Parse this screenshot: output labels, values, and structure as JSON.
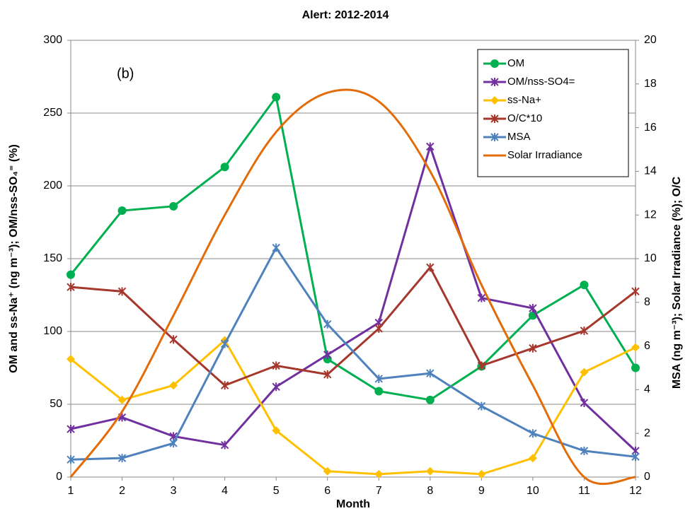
{
  "chart_data": {
    "type": "line",
    "title": "Alert: 2012-2014",
    "annotation": "(b)",
    "x_label": "Month",
    "y_label": "OM and ss-Na⁺ (ng m⁻³); OM/nss-SO₄⁼ (%)",
    "y2_label": "MSA (ng m⁻³); Solar Irradiance (%); O/C",
    "x": [
      1,
      2,
      3,
      4,
      5,
      6,
      7,
      8,
      9,
      10,
      11,
      12
    ],
    "xlim": [
      1,
      12
    ],
    "xticks": [
      1,
      2,
      3,
      4,
      5,
      6,
      7,
      8,
      9,
      10,
      11,
      12
    ],
    "ylim": [
      0,
      300
    ],
    "yticks": [
      0,
      50,
      100,
      150,
      200,
      250,
      300
    ],
    "y2lim": [
      0,
      20
    ],
    "y2ticks": [
      0,
      2,
      4,
      6,
      8,
      10,
      12,
      14,
      16,
      18,
      20
    ],
    "grid": true,
    "legend": "top-right",
    "series": [
      {
        "name": "OM",
        "color": "#00b050",
        "marker": "circle",
        "values": [
          139,
          183,
          186,
          213,
          261,
          81,
          59,
          53,
          76,
          111,
          132,
          75
        ]
      },
      {
        "name": "OM/nss-SO4=",
        "color": "#7030a0",
        "marker": "star",
        "values": [
          33,
          41,
          28,
          22,
          62,
          84,
          106,
          227,
          123,
          116,
          51,
          18
        ]
      },
      {
        "name": "ss-Na+",
        "color": "#ffc000",
        "marker": "diamond",
        "values": [
          81,
          53,
          63,
          94,
          32,
          4,
          2,
          4,
          2,
          13,
          72,
          89
        ]
      },
      {
        "name": "O/C*10",
        "color": "#a5372c",
        "marker": "star",
        "axis": "y2",
        "values": [
          8.7,
          8.5,
          6.3,
          4.2,
          5.1,
          4.7,
          6.8,
          9.6,
          5.1,
          5.9,
          6.7,
          8.5
        ]
      },
      {
        "name": "MSA",
        "color": "#4f81bd",
        "marker": "star",
        "axis": "y2",
        "values": [
          0.8,
          0.87,
          1.55,
          6.1,
          10.5,
          7.0,
          4.5,
          4.75,
          3.25,
          2.0,
          1.2,
          0.93
        ]
      },
      {
        "name": "Solar Irradiance",
        "color": "#e36c09",
        "marker": "none",
        "smooth": true,
        "axis": "y2",
        "values": [
          0,
          3.0,
          7.4,
          12.0,
          15.8,
          17.6,
          17.2,
          14.0,
          8.8,
          4.2,
          0,
          0
        ]
      }
    ]
  }
}
